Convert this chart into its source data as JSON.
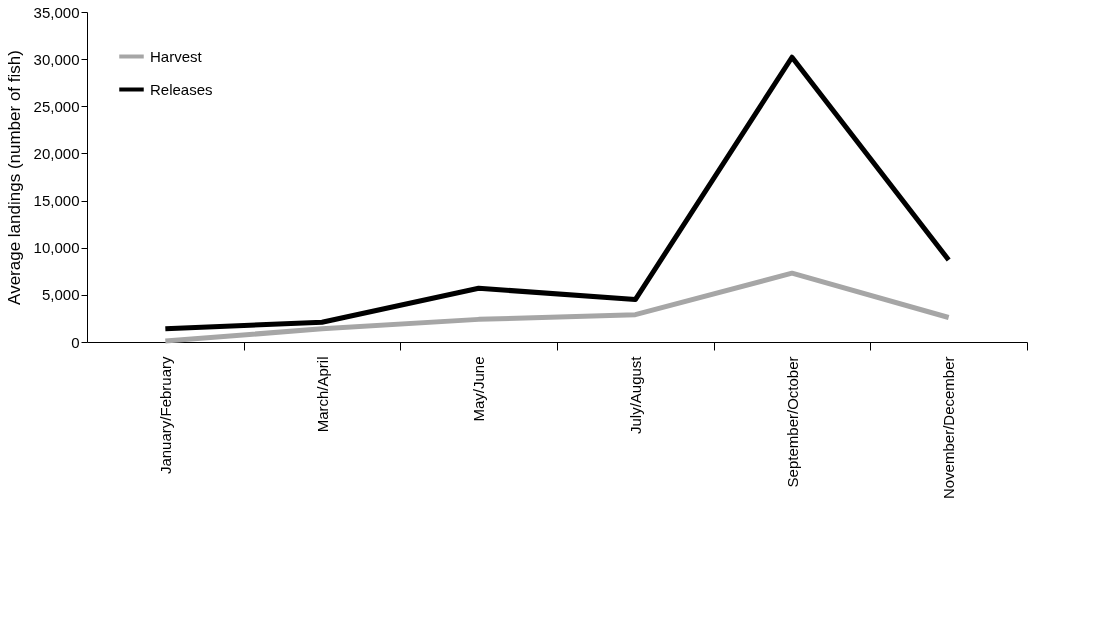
{
  "chart_data": {
    "type": "line",
    "ylabel": "Average landings (number of fish)",
    "categories": [
      "January/February",
      "March/April",
      "May/June",
      "July/August",
      "September/October",
      "November/December"
    ],
    "series": [
      {
        "name": "Harvest",
        "color": "#a6a6a6",
        "values": [
          100,
          1400,
          2400,
          2900,
          7300,
          2600
        ]
      },
      {
        "name": "Releases",
        "color": "#000000",
        "values": [
          1400,
          2100,
          5700,
          4500,
          30200,
          8700
        ]
      }
    ],
    "ylim": [
      0,
      35000
    ],
    "yticks": [
      0,
      {
        "value": 5000,
        "label": "5,000"
      },
      {
        "value": 10000,
        "label": "10,000"
      },
      {
        "value": 15000,
        "label": "15,000"
      },
      {
        "value": 20000,
        "label": "20,000"
      },
      {
        "value": 25000,
        "label": "25,000"
      },
      {
        "value": 30000,
        "label": "30,000"
      },
      {
        "value": 35000,
        "label": "35,000"
      }
    ],
    "grid": false,
    "legend": "top left",
    "marker": "none",
    "line_style": "solid"
  }
}
